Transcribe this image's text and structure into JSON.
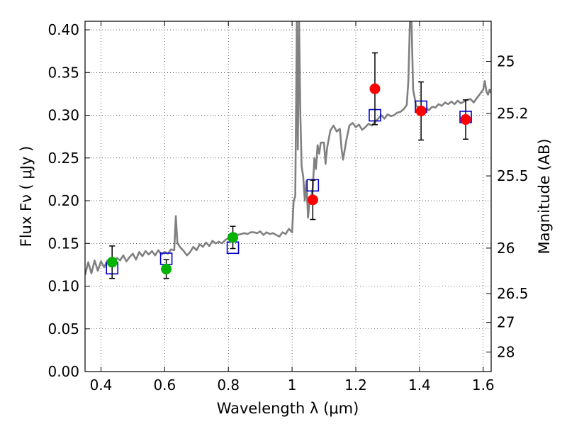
{
  "chart_data": {
    "type": "scatter",
    "xlabel": "Wavelength  λ (μm)",
    "ylabel": "Flux  Fν  ( μJy )",
    "y2label": "Magnitude (AB)",
    "xlim": [
      0.35,
      1.625
    ],
    "ylim": [
      0.0,
      0.41
    ],
    "grid": true,
    "x_ticks": [
      0.4,
      0.6,
      0.8,
      1.0,
      1.2,
      1.4,
      1.6
    ],
    "x_tick_labels": [
      "0.4",
      "0.6",
      "0.8",
      "1",
      "1.2",
      "1.4",
      "1.6"
    ],
    "y_ticks": [
      0.0,
      0.05,
      0.1,
      0.15,
      0.2,
      0.25,
      0.3,
      0.35,
      0.4
    ],
    "y_tick_labels": [
      "0.00",
      "0.05",
      "0.10",
      "0.15",
      "0.20",
      "0.25",
      "0.30",
      "0.35",
      "0.40"
    ],
    "y2_ticks": [
      {
        "label": "25",
        "flux": 0.3631
      },
      {
        "label": "25.2",
        "flux": 0.302
      },
      {
        "label": "25.5",
        "flux": 0.229
      },
      {
        "label": "26",
        "flux": 0.1445
      },
      {
        "label": "26.5",
        "flux": 0.0912
      },
      {
        "label": "27",
        "flux": 0.0575
      },
      {
        "label": "28",
        "flux": 0.0229
      }
    ],
    "series": [
      {
        "kind": "spectrum",
        "color": "#808080",
        "points": [
          [
            0.35,
            0.113
          ],
          [
            0.36,
            0.128
          ],
          [
            0.37,
            0.115
          ],
          [
            0.38,
            0.13
          ],
          [
            0.39,
            0.118
          ],
          [
            0.4,
            0.129
          ],
          [
            0.41,
            0.122
          ],
          [
            0.42,
            0.13
          ],
          [
            0.43,
            0.131
          ],
          [
            0.44,
            0.128
          ],
          [
            0.45,
            0.133
          ],
          [
            0.46,
            0.13
          ],
          [
            0.47,
            0.136
          ],
          [
            0.48,
            0.129
          ],
          [
            0.49,
            0.134
          ],
          [
            0.5,
            0.138
          ],
          [
            0.51,
            0.131
          ],
          [
            0.52,
            0.14
          ],
          [
            0.53,
            0.135
          ],
          [
            0.54,
            0.141
          ],
          [
            0.55,
            0.137
          ],
          [
            0.56,
            0.141
          ],
          [
            0.57,
            0.136
          ],
          [
            0.58,
            0.142
          ],
          [
            0.59,
            0.137
          ],
          [
            0.6,
            0.14
          ],
          [
            0.61,
            0.138
          ],
          [
            0.62,
            0.143
          ],
          [
            0.63,
            0.142
          ],
          [
            0.635,
            0.182
          ],
          [
            0.64,
            0.15
          ],
          [
            0.65,
            0.145
          ],
          [
            0.66,
            0.141
          ],
          [
            0.67,
            0.136
          ],
          [
            0.68,
            0.14
          ],
          [
            0.69,
            0.146
          ],
          [
            0.7,
            0.142
          ],
          [
            0.71,
            0.149
          ],
          [
            0.72,
            0.146
          ],
          [
            0.73,
            0.151
          ],
          [
            0.74,
            0.147
          ],
          [
            0.75,
            0.153
          ],
          [
            0.76,
            0.15
          ],
          [
            0.77,
            0.152
          ],
          [
            0.78,
            0.15
          ],
          [
            0.79,
            0.154
          ],
          [
            0.8,
            0.156
          ],
          [
            0.81,
            0.16
          ],
          [
            0.82,
            0.162
          ],
          [
            0.83,
            0.16
          ],
          [
            0.84,
            0.161
          ],
          [
            0.85,
            0.162
          ],
          [
            0.86,
            0.161
          ],
          [
            0.87,
            0.163
          ],
          [
            0.88,
            0.163
          ],
          [
            0.89,
            0.162
          ],
          [
            0.9,
            0.164
          ],
          [
            0.91,
            0.16
          ],
          [
            0.92,
            0.163
          ],
          [
            0.93,
            0.161
          ],
          [
            0.94,
            0.162
          ],
          [
            0.95,
            0.16
          ],
          [
            0.96,
            0.158
          ],
          [
            0.97,
            0.163
          ],
          [
            0.98,
            0.161
          ],
          [
            0.99,
            0.167
          ],
          [
            1.0,
            0.163
          ],
          [
            1.005,
            0.2
          ],
          [
            1.01,
            0.205
          ],
          [
            1.015,
            0.41
          ],
          [
            1.018,
            0.26
          ],
          [
            1.022,
            0.41
          ],
          [
            1.026,
            0.3
          ],
          [
            1.03,
            0.24
          ],
          [
            1.035,
            0.228
          ],
          [
            1.04,
            0.2
          ],
          [
            1.045,
            0.223
          ],
          [
            1.05,
            0.18
          ],
          [
            1.055,
            0.2
          ],
          [
            1.06,
            0.205
          ],
          [
            1.065,
            0.215
          ],
          [
            1.07,
            0.25
          ],
          [
            1.075,
            0.237
          ],
          [
            1.08,
            0.265
          ],
          [
            1.085,
            0.255
          ],
          [
            1.09,
            0.268
          ],
          [
            1.1,
            0.268
          ],
          [
            1.105,
            0.243
          ],
          [
            1.11,
            0.262
          ],
          [
            1.12,
            0.282
          ],
          [
            1.13,
            0.288
          ],
          [
            1.14,
            0.281
          ],
          [
            1.15,
            0.284
          ],
          [
            1.155,
            0.262
          ],
          [
            1.16,
            0.248
          ],
          [
            1.17,
            0.27
          ],
          [
            1.18,
            0.288
          ],
          [
            1.19,
            0.291
          ],
          [
            1.2,
            0.286
          ],
          [
            1.21,
            0.289
          ],
          [
            1.22,
            0.283
          ],
          [
            1.23,
            0.286
          ],
          [
            1.24,
            0.29
          ],
          [
            1.25,
            0.288
          ],
          [
            1.26,
            0.292
          ],
          [
            1.27,
            0.296
          ],
          [
            1.28,
            0.3
          ],
          [
            1.29,
            0.296
          ],
          [
            1.3,
            0.301
          ],
          [
            1.31,
            0.299
          ],
          [
            1.32,
            0.3
          ],
          [
            1.33,
            0.303
          ],
          [
            1.34,
            0.304
          ],
          [
            1.35,
            0.307
          ],
          [
            1.36,
            0.312
          ],
          [
            1.365,
            0.34
          ],
          [
            1.37,
            0.41
          ],
          [
            1.375,
            0.41
          ],
          [
            1.38,
            0.33
          ],
          [
            1.39,
            0.31
          ],
          [
            1.4,
            0.31
          ],
          [
            1.41,
            0.306
          ],
          [
            1.42,
            0.308
          ],
          [
            1.43,
            0.306
          ],
          [
            1.44,
            0.31
          ],
          [
            1.45,
            0.309
          ],
          [
            1.46,
            0.313
          ],
          [
            1.47,
            0.311
          ],
          [
            1.48,
            0.315
          ],
          [
            1.49,
            0.313
          ],
          [
            1.5,
            0.316
          ],
          [
            1.51,
            0.313
          ],
          [
            1.52,
            0.317
          ],
          [
            1.53,
            0.314
          ],
          [
            1.54,
            0.316
          ],
          [
            1.55,
            0.318
          ],
          [
            1.56,
            0.319
          ],
          [
            1.57,
            0.315
          ],
          [
            1.58,
            0.32
          ],
          [
            1.59,
            0.325
          ],
          [
            1.6,
            0.33
          ],
          [
            1.605,
            0.34
          ],
          [
            1.61,
            0.328
          ],
          [
            1.615,
            0.324
          ],
          [
            1.62,
            0.33
          ],
          [
            1.625,
            0.326
          ]
        ]
      },
      {
        "kind": "model-photometry",
        "color": "#0000cc",
        "marker": "open-square",
        "points": [
          [
            0.435,
            0.121
          ],
          [
            0.605,
            0.132
          ],
          [
            0.814,
            0.145
          ],
          [
            1.065,
            0.218
          ],
          [
            1.26,
            0.3
          ],
          [
            1.405,
            0.31
          ],
          [
            1.545,
            0.298
          ]
        ]
      },
      {
        "kind": "optical-photometry",
        "color": "#00b300",
        "marker": "filled-circle",
        "points": [
          {
            "x": 0.435,
            "y": 0.128,
            "err": 0.019
          },
          {
            "x": 0.605,
            "y": 0.12,
            "err": 0.011
          },
          {
            "x": 0.814,
            "y": 0.157,
            "err": 0.013
          }
        ]
      },
      {
        "kind": "nir-photometry",
        "color": "#ff0000",
        "marker": "filled-circle",
        "points": [
          {
            "x": 1.065,
            "y": 0.201,
            "err": 0.023
          },
          {
            "x": 1.26,
            "y": 0.331,
            "err": 0.042
          },
          {
            "x": 1.405,
            "y": 0.305,
            "err": 0.034
          },
          {
            "x": 1.545,
            "y": 0.295,
            "err": 0.023
          }
        ]
      }
    ]
  }
}
